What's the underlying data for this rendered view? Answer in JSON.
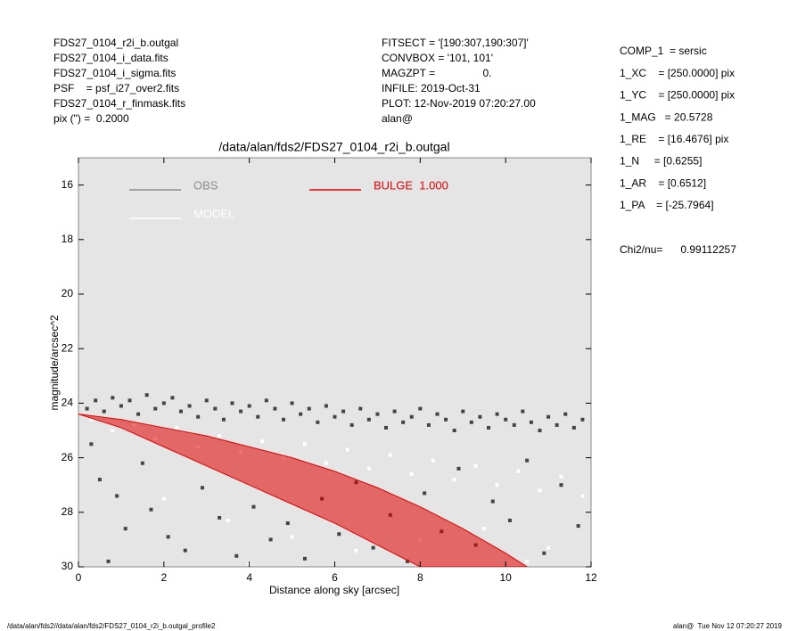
{
  "header_left": [
    "FDS27_0104_r2i_b.outgal",
    "FDS27_0104_i_data.fits",
    "FDS27_0104_i_sigma.fits",
    "PSF    = psf_i27_over2.fits",
    "FDS27_0104_r_finmask.fits",
    "pix (\") =  0.2000"
  ],
  "header_middle": [
    "FITSECT = '[190:307,190:307]'",
    "CONVBOX = '101, 101'",
    "MAGZPT =                0.",
    "INFILE: 2019-Oct-31",
    "PLOT: 12-Nov-2019 07:20:27.00",
    "alan@"
  ],
  "params": [
    "COMP_1  = sersic",
    "1_XC    = [250.0000] pix",
    "1_YC    = [250.0000] pix",
    "1_MAG   = 20.5728",
    "1_RE    = [16.4676] pix",
    "1_N     = [0.6255]",
    "1_AR    = [0.6512]",
    "1_PA    = [-25.7964]"
  ],
  "chi2": "Chi2/nu=      0.99112257",
  "footer_left": "/data/alan/fds2//data/alan/fds2/FDS27_0104_r2i_b.outgal_profile2",
  "footer_right": "alan@  Tue Nov 12 07:20:27 2019",
  "chart_data": {
    "type": "scatter",
    "title": "/data/alan/fds2/FDS27_0104_r2i_b.outgal",
    "x_label": "Distance along sky [arcsec]",
    "y_label": "magnitude/arcsec^2",
    "xlim": [
      0,
      12
    ],
    "xticks": [
      0,
      2,
      4,
      6,
      8,
      10,
      12
    ],
    "ylim": [
      15,
      30
    ],
    "yticks": [
      16,
      18,
      20,
      22,
      24,
      26,
      28,
      30
    ],
    "y_inverted": true,
    "background": "#e5e5e5",
    "series": [
      {
        "name": "OBS",
        "color": "#444444",
        "legend_color": "#8c8c8c",
        "x": [
          0.2,
          0.4,
          0.6,
          0.8,
          1.0,
          1.2,
          1.4,
          1.6,
          1.8,
          2.0,
          2.2,
          2.4,
          2.6,
          2.8,
          3.0,
          3.2,
          3.4,
          3.6,
          3.8,
          4.0,
          4.2,
          4.4,
          4.6,
          4.8,
          5.0,
          5.2,
          5.4,
          5.6,
          5.8,
          6.0,
          6.2,
          6.4,
          6.6,
          6.8,
          7.0,
          7.2,
          7.4,
          7.6,
          7.8,
          8.0,
          8.2,
          8.4,
          8.6,
          8.8,
          9.0,
          9.2,
          9.4,
          9.6,
          9.8,
          10.0,
          10.2,
          10.4,
          10.6,
          10.8,
          11.0,
          11.2,
          11.4,
          11.6,
          11.8,
          0.3,
          0.5,
          0.9,
          1.1,
          1.5,
          1.7,
          2.1,
          2.5,
          2.9,
          3.3,
          3.7,
          4.1,
          4.5,
          4.9,
          5.3,
          5.7,
          6.1,
          6.5,
          6.9,
          7.3,
          7.7,
          8.1,
          8.5,
          8.9,
          9.3,
          9.7,
          10.1,
          10.5,
          10.9,
          11.3,
          11.7,
          0.7
        ],
        "values": [
          24.2,
          23.9,
          24.3,
          23.8,
          24.1,
          23.9,
          24.4,
          23.7,
          24.2,
          24.0,
          23.8,
          24.3,
          24.1,
          24.5,
          23.9,
          24.2,
          24.6,
          24.0,
          24.3,
          24.1,
          24.5,
          23.9,
          24.2,
          24.6,
          24.0,
          24.4,
          24.2,
          24.7,
          24.1,
          24.5,
          24.3,
          24.8,
          24.2,
          24.6,
          24.4,
          24.9,
          24.3,
          24.7,
          24.5,
          24.2,
          24.8,
          24.4,
          24.6,
          25.0,
          24.3,
          24.7,
          24.5,
          24.9,
          24.4,
          24.6,
          24.8,
          24.3,
          24.7,
          25.0,
          24.5,
          24.8,
          24.4,
          24.9,
          24.6,
          25.5,
          26.8,
          27.4,
          28.6,
          26.2,
          27.9,
          28.9,
          29.4,
          27.1,
          28.2,
          29.6,
          27.8,
          29.0,
          28.4,
          29.7,
          27.5,
          28.8,
          26.9,
          29.3,
          28.1,
          29.8,
          27.3,
          28.7,
          26.4,
          29.2,
          27.6,
          28.3,
          26.1,
          29.5,
          27.0,
          28.5,
          29.8
        ]
      },
      {
        "name": "MODEL",
        "color": "#ffffff",
        "legend_color": "#ffffff",
        "x": [
          0.3,
          0.8,
          1.3,
          1.8,
          2.3,
          2.8,
          3.3,
          3.8,
          4.3,
          4.8,
          5.3,
          5.8,
          6.3,
          6.8,
          7.3,
          7.8,
          8.3,
          8.8,
          9.3,
          9.8,
          10.3,
          10.8,
          11.3,
          11.8,
          2.0,
          3.5,
          5.0,
          6.5,
          8.0,
          9.5,
          11.0,
          4.0,
          10.5
        ],
        "values": [
          24.6,
          25.0,
          24.8,
          25.3,
          24.9,
          25.6,
          25.2,
          25.8,
          25.4,
          26.0,
          25.5,
          26.2,
          25.7,
          26.4,
          25.9,
          26.6,
          26.1,
          26.8,
          26.3,
          27.0,
          26.5,
          27.2,
          26.7,
          27.4,
          27.5,
          28.3,
          28.9,
          29.4,
          29.0,
          28.6,
          29.3,
          29.9,
          29.8
        ]
      },
      {
        "name": "BULGE  1.000",
        "color": "#e00000",
        "legend_color": "#e00000",
        "x": [
          0,
          1,
          2,
          3,
          4,
          5,
          6,
          7,
          8,
          9,
          10,
          10.5
        ],
        "values": [
          24.4,
          24.6,
          24.9,
          25.2,
          25.6,
          26.0,
          26.5,
          27.1,
          27.8,
          28.6,
          29.5,
          30
        ],
        "values_faint": [
          24.4,
          24.9,
          25.6,
          26.3,
          27.0,
          27.7,
          28.4,
          29.2,
          30,
          null,
          null,
          null
        ]
      }
    ]
  }
}
